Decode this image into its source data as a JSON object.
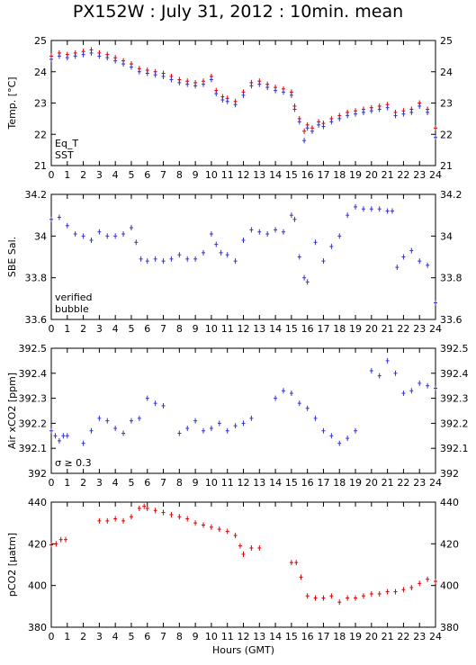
{
  "title": "PX152W : July 31, 2012 : 10min. mean",
  "colors": {
    "eq": "#dd0000",
    "sst": "#3333cc",
    "sal": "#3333cc",
    "bubble": "#cc33cc",
    "pco2": "#dd0000",
    "axis": "#000000"
  },
  "chart_data": [
    {
      "type": "scatter",
      "ylabel": "Temp. [°C]",
      "xlabel": "",
      "xlim": [
        0,
        24
      ],
      "ylim": [
        21,
        25
      ],
      "xticks": [
        "0",
        "1",
        "2",
        "3",
        "4",
        "5",
        "6",
        "7",
        "8",
        "9",
        "10",
        "11",
        "12",
        "13",
        "14",
        "15",
        "16",
        "17",
        "18",
        "19",
        "20",
        "21",
        "22",
        "23",
        "24"
      ],
      "yticks": [
        "21",
        "22",
        "23",
        "24",
        "25"
      ],
      "legend": [
        "Eq_T",
        "SST"
      ],
      "legend_position": "bottom-left",
      "series": [
        {
          "name": "Eq_T",
          "x": [
            0,
            0.5,
            1,
            1.5,
            2,
            2.5,
            3,
            3.5,
            4,
            4.5,
            5,
            5.5,
            6,
            6.5,
            7,
            7.5,
            8,
            8.5,
            9,
            9.5,
            10,
            10.3,
            10.7,
            11,
            11.5,
            12,
            12.5,
            13,
            13.5,
            14,
            14.5,
            15,
            15.2,
            15.5,
            15.8,
            16,
            16.3,
            16.7,
            17,
            17.5,
            18,
            18.5,
            19,
            19.5,
            20,
            20.5,
            21,
            21.5,
            22,
            22.5,
            23,
            23.5,
            24
          ],
          "y": [
            24.5,
            24.6,
            24.55,
            24.6,
            24.65,
            24.7,
            24.6,
            24.55,
            24.45,
            24.35,
            24.25,
            24.1,
            24.05,
            24.0,
            23.95,
            23.85,
            23.75,
            23.7,
            23.65,
            23.7,
            23.85,
            23.4,
            23.2,
            23.15,
            23.05,
            23.35,
            23.65,
            23.7,
            23.6,
            23.5,
            23.45,
            23.35,
            22.9,
            22.5,
            22.1,
            22.3,
            22.2,
            22.4,
            22.35,
            22.5,
            22.6,
            22.7,
            22.75,
            22.8,
            22.85,
            22.9,
            22.95,
            22.7,
            22.75,
            22.8,
            23.0,
            22.8,
            22.2
          ]
        },
        {
          "name": "SST",
          "x": [
            0,
            0.5,
            1,
            1.5,
            2,
            2.5,
            3,
            3.5,
            4,
            4.5,
            5,
            5.5,
            6,
            6.5,
            7,
            7.5,
            8,
            8.5,
            9,
            9.5,
            10,
            10.3,
            10.7,
            11,
            11.5,
            12,
            12.5,
            13,
            13.5,
            14,
            14.5,
            15,
            15.2,
            15.5,
            15.8,
            16,
            16.3,
            16.7,
            17,
            17.5,
            18,
            18.5,
            19,
            19.5,
            20,
            20.5,
            21,
            21.5,
            22,
            22.5,
            23,
            23.5,
            24
          ],
          "y": [
            24.4,
            24.5,
            24.45,
            24.5,
            24.55,
            24.6,
            24.5,
            24.45,
            24.35,
            24.25,
            24.15,
            24.0,
            23.95,
            23.9,
            23.85,
            23.75,
            23.65,
            23.6,
            23.55,
            23.6,
            23.75,
            23.3,
            23.1,
            23.05,
            22.95,
            23.25,
            23.55,
            23.6,
            23.5,
            23.4,
            23.35,
            23.25,
            22.8,
            22.4,
            21.8,
            22.2,
            22.1,
            22.3,
            22.25,
            22.4,
            22.5,
            22.6,
            22.65,
            22.7,
            22.75,
            22.8,
            22.85,
            22.6,
            22.65,
            22.7,
            22.9,
            22.7,
            21.9
          ]
        }
      ]
    },
    {
      "type": "scatter",
      "ylabel": "SBE Sal.",
      "xlabel": "",
      "xlim": [
        0,
        24
      ],
      "ylim": [
        33.6,
        34.2
      ],
      "xticks": [
        "0",
        "1",
        "2",
        "3",
        "4",
        "5",
        "6",
        "7",
        "8",
        "9",
        "10",
        "11",
        "12",
        "13",
        "14",
        "15",
        "16",
        "17",
        "18",
        "19",
        "20",
        "21",
        "22",
        "23",
        "24"
      ],
      "yticks": [
        "33.6",
        "33.8",
        "34",
        "34.2"
      ],
      "legend": [
        "verified",
        "bubble"
      ],
      "legend_position": "bottom-left",
      "series": [
        {
          "name": "verified",
          "x": [
            0,
            0.5,
            1,
            1.5,
            2,
            2.5,
            3,
            3.5,
            4,
            4.5,
            5,
            5.3,
            5.6,
            6,
            6.5,
            7,
            7.5,
            8,
            8.5,
            9,
            9.5,
            10,
            10.3,
            10.6,
            11,
            11.5,
            12,
            12.5,
            13,
            13.5,
            14,
            14.5,
            15,
            15.2,
            15.5,
            15.8,
            16,
            16.5,
            17,
            17.5,
            18,
            18.5,
            19,
            19.5,
            20,
            20.5,
            21,
            21.3,
            21.6,
            22,
            22.5,
            23,
            23.5,
            24
          ],
          "y": [
            34.08,
            34.09,
            34.05,
            34.01,
            34.0,
            33.98,
            34.02,
            34.0,
            34.0,
            34.01,
            34.04,
            33.97,
            33.89,
            33.88,
            33.89,
            33.88,
            33.89,
            33.91,
            33.89,
            33.89,
            33.92,
            34.01,
            33.96,
            33.92,
            33.91,
            33.88,
            33.98,
            34.03,
            34.02,
            34.01,
            34.03,
            34.02,
            34.1,
            34.08,
            33.9,
            33.8,
            33.78,
            33.97,
            33.88,
            33.95,
            34.0,
            34.1,
            34.14,
            34.13,
            34.13,
            34.13,
            34.12,
            34.12,
            33.85,
            33.9,
            33.93,
            33.88,
            33.86,
            33.68
          ]
        }
      ]
    },
    {
      "type": "scatter",
      "ylabel": "Air xCO2 [ppm]",
      "xlabel": "",
      "xlim": [
        0,
        24
      ],
      "ylim": [
        392,
        392.5
      ],
      "xticks": [
        "0",
        "1",
        "2",
        "3",
        "4",
        "5",
        "6",
        "7",
        "8",
        "9",
        "10",
        "11",
        "12",
        "13",
        "14",
        "15",
        "16",
        "17",
        "18",
        "19",
        "20",
        "21",
        "22",
        "23",
        "24"
      ],
      "yticks": [
        "392",
        "392.1",
        "392.2",
        "392.3",
        "392.4",
        "392.5"
      ],
      "legend": [
        "σ ≥ 0.3"
      ],
      "legend_position": "bottom-left",
      "series": [
        {
          "name": "",
          "x": [
            0,
            0.25,
            0.5,
            0.75,
            1,
            2,
            2.5,
            3,
            3.5,
            4,
            4.5,
            5,
            5.5,
            6,
            6.5,
            7,
            8,
            8.5,
            9,
            9.5,
            10,
            10.5,
            11,
            11.5,
            12,
            12.5,
            14,
            14.5,
            15,
            15.5,
            16,
            16.5,
            17,
            17.5,
            18,
            18.5,
            19,
            20,
            20.5,
            21,
            21.5,
            22,
            22.5,
            23,
            23.5,
            24
          ],
          "y": [
            392.17,
            392.15,
            392.13,
            392.15,
            392.15,
            392.12,
            392.17,
            392.22,
            392.21,
            392.18,
            392.16,
            392.21,
            392.22,
            392.3,
            392.28,
            392.27,
            392.16,
            392.18,
            392.21,
            392.17,
            392.18,
            392.2,
            392.17,
            392.19,
            392.2,
            392.22,
            392.3,
            392.33,
            392.32,
            392.28,
            392.26,
            392.22,
            392.17,
            392.15,
            392.12,
            392.14,
            392.17,
            392.41,
            392.39,
            392.45,
            392.4,
            392.32,
            392.33,
            392.36,
            392.35,
            392.34
          ]
        }
      ]
    },
    {
      "type": "scatter",
      "ylabel": "pCO2 [μatm]",
      "xlabel": "Hours (GMT)",
      "xlim": [
        0,
        24
      ],
      "ylim": [
        380,
        440
      ],
      "xticks": [
        "0",
        "1",
        "2",
        "3",
        "4",
        "5",
        "6",
        "7",
        "8",
        "9",
        "10",
        "11",
        "12",
        "13",
        "14",
        "15",
        "16",
        "17",
        "18",
        "19",
        "20",
        "21",
        "22",
        "23",
        "24"
      ],
      "yticks": [
        "380",
        "400",
        "420",
        "440"
      ],
      "series": [
        {
          "name": "",
          "x": [
            0,
            0.3,
            0.6,
            0.9,
            3,
            3.5,
            4,
            4.5,
            5,
            5.5,
            5.8,
            6,
            6.5,
            7,
            7.5,
            8,
            8.5,
            9,
            9.5,
            10,
            10.5,
            11,
            11.5,
            11.8,
            12,
            12.5,
            13,
            15,
            15.3,
            15.6,
            16,
            16.5,
            17,
            17.5,
            18,
            18.5,
            19,
            19.5,
            20,
            20.5,
            21,
            21.5,
            22,
            22.5,
            23,
            23.5,
            24
          ],
          "y": [
            419.5,
            420,
            422,
            422,
            431,
            431,
            432,
            431,
            433,
            437,
            438,
            437,
            436,
            435,
            434,
            433,
            432,
            430,
            429,
            428,
            427,
            426,
            424,
            419,
            415,
            418,
            418,
            411,
            411,
            404,
            395,
            394,
            394,
            395,
            392,
            394,
            394,
            395,
            396,
            396,
            397,
            397,
            398,
            399,
            401,
            403,
            402
          ]
        }
      ]
    }
  ]
}
